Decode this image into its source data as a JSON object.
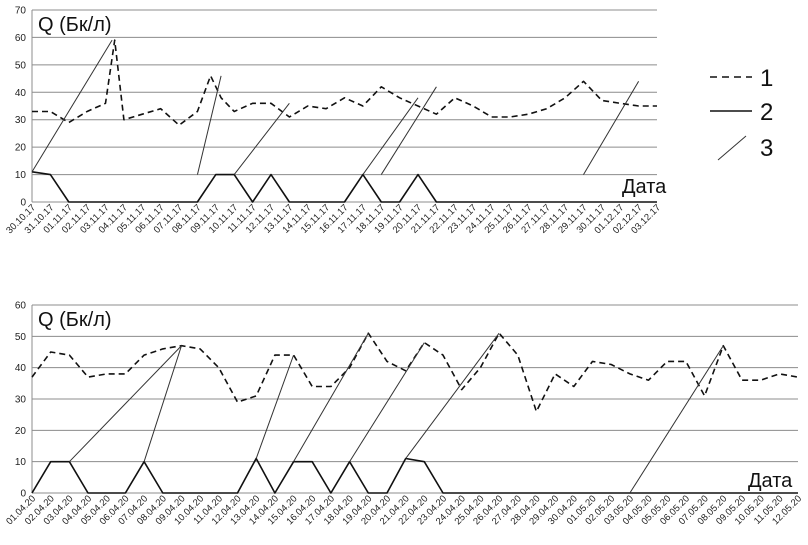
{
  "chart_data": [
    {
      "type": "line",
      "ylabel": "Q (Бк/л)",
      "xlabel": "Дата",
      "ylim": [
        0,
        70
      ],
      "yticks": [
        0,
        10,
        20,
        30,
        40,
        50,
        60,
        70
      ],
      "grid": true,
      "categories": [
        "30.10.17",
        "31.10.17",
        "01.11.17",
        "02.11.17",
        "03.11.17",
        "04.11.17",
        "05.11.17",
        "06.11.17",
        "07.11.17",
        "08.11.17",
        "09.11.17",
        "10.11.17",
        "11.11.17",
        "12.11.17",
        "13.11.17",
        "14.11.17",
        "15.11.17",
        "16.11.17",
        "17.11.17",
        "18.11.17",
        "19.11.17",
        "20.11.17",
        "21.11.17",
        "22.11.17",
        "23.11.17",
        "24.11.17",
        "25.11.17",
        "26.11.17",
        "27.11.17",
        "28.11.17",
        "29.11.17",
        "30.11.17",
        "01.12.17",
        "02.12.17",
        "03.12.17"
      ],
      "label_positions": [
        0,
        1.4,
        2.8,
        4.2,
        5.6,
        7,
        8.4,
        9.8,
        11.2,
        12.6,
        14,
        15.4,
        16.8,
        18.2,
        19.6,
        21,
        22.4,
        23.8,
        25.2,
        26.6,
        28,
        29.4,
        30.8,
        32.2,
        33.6,
        35,
        36.4,
        37.8,
        39.2,
        40.6,
        42,
        43.4,
        44.8,
        46.2,
        47.6
      ],
      "series": [
        {
          "name": "1",
          "style": "dashed",
          "color": "#111111",
          "x": [
            0,
            1.4,
            2.8,
            4.2,
            5.6,
            6.3,
            7,
            8.4,
            9.8,
            11.2,
            12.6,
            13.6,
            14.4,
            15.4,
            16.8,
            18.2,
            19.6,
            21,
            22.4,
            23.8,
            25.2,
            26.6,
            28,
            29.4,
            30.8,
            32.2,
            33.6,
            35,
            36.4,
            37.8,
            39.2,
            40.6,
            42,
            43.4,
            44.8,
            46.2,
            47.6
          ],
          "y": [
            33,
            33,
            29,
            33,
            36,
            59,
            30,
            32,
            34,
            28,
            33,
            46,
            38,
            33,
            36,
            36,
            31,
            35,
            34,
            38,
            35,
            42,
            38,
            35,
            32,
            38,
            35,
            31,
            31,
            32,
            34,
            38,
            44,
            37,
            36,
            35,
            35
          ]
        },
        {
          "name": "2",
          "style": "solid",
          "color": "#111111",
          "x": [
            0,
            1.4,
            2.8,
            4.2,
            5.6,
            7,
            8.4,
            9.8,
            11.2,
            12.6,
            14,
            15.4,
            16.8,
            18.2,
            19.6,
            21,
            22.4,
            23.8,
            25.2,
            26.6,
            28,
            29.4,
            30.8,
            32.2,
            33.6,
            35,
            36.4,
            37.8,
            39.2,
            40.6,
            42,
            43.4,
            44.8,
            46.2,
            47.6
          ],
          "y": [
            11,
            10,
            0,
            0,
            0,
            0,
            0,
            0,
            0,
            0,
            10,
            10,
            0,
            10,
            0,
            0,
            0,
            0,
            10,
            0,
            0,
            10,
            0,
            0,
            0,
            0,
            0,
            0,
            0,
            0,
            0,
            0,
            0,
            0,
            0
          ]
        },
        {
          "name": "3",
          "style": "thin",
          "color": "#333333",
          "segments": [
            [
              [
                0,
                11
              ],
              [
                6.1,
                59
              ]
            ],
            [
              [
                12.6,
                10
              ],
              [
                14.4,
                46
              ]
            ],
            [
              [
                15.4,
                10
              ],
              [
                19.6,
                36
              ]
            ],
            [
              [
                25.2,
                10
              ],
              [
                29.4,
                38
              ]
            ],
            [
              [
                26.6,
                10
              ],
              [
                30.8,
                42
              ]
            ],
            [
              [
                42,
                10
              ],
              [
                46.2,
                44
              ]
            ]
          ]
        }
      ]
    },
    {
      "type": "line",
      "ylabel": "Q (Бк/л)",
      "xlabel": "Дата",
      "ylim": [
        0,
        60
      ],
      "yticks": [
        0,
        10,
        20,
        30,
        40,
        50,
        60
      ],
      "grid": true,
      "categories": [
        "01.04.20",
        "02.04.20",
        "03.04.20",
        "04.04.20",
        "05.04.20",
        "06.04.20",
        "07.04.20",
        "08.04.20",
        "09.04.20",
        "10.04.20",
        "11.04.20",
        "12.04.20",
        "13.04.20",
        "14.04.20",
        "15.04.20",
        "16.04.20",
        "17.04.20",
        "18.04.20",
        "19.04.20",
        "20.04.20",
        "21.04.20",
        "22.04.20",
        "23.04.20",
        "24.04.20",
        "25.04.20",
        "26.04.20",
        "27.04.20",
        "28.04.20",
        "29.04.20",
        "30.04.20",
        "01.05.20",
        "02.05.20",
        "03.05.20",
        "04.05.20",
        "05.05.20",
        "06.05.20",
        "07.05.20",
        "08.05.20",
        "09.05.20",
        "10.05.20",
        "11.05.20",
        "12.05.20"
      ],
      "series": [
        {
          "name": "1",
          "style": "dashed",
          "color": "#111111",
          "x": [
            0,
            1,
            2,
            3,
            4,
            5,
            6,
            7,
            8,
            9,
            10,
            11,
            12,
            13,
            14,
            15,
            16,
            17,
            18,
            19,
            20,
            21,
            22,
            23,
            24,
            25,
            26,
            27,
            28,
            29,
            30,
            31,
            32,
            33,
            34,
            35,
            36,
            37,
            38,
            39,
            40,
            41
          ],
          "y": [
            37,
            45,
            44,
            37,
            38,
            38,
            44,
            46,
            47,
            46,
            40,
            29,
            31,
            44,
            44,
            34,
            34,
            40,
            51,
            42,
            39,
            48,
            44,
            33,
            40,
            51,
            44,
            26,
            38,
            34,
            42,
            41,
            38,
            36,
            42,
            42,
            31,
            47,
            36,
            36,
            38,
            37
          ]
        },
        {
          "name": "2",
          "style": "solid",
          "color": "#111111",
          "x": [
            0,
            1,
            2,
            3,
            4,
            5,
            6,
            7,
            8,
            9,
            10,
            11,
            12,
            13,
            14,
            15,
            16,
            17,
            18,
            19,
            20,
            21,
            22,
            23,
            24,
            25,
            26,
            27,
            28,
            29,
            30,
            31,
            32,
            33,
            34,
            35,
            36,
            37,
            38,
            39,
            40,
            41
          ],
          "y": [
            0,
            10,
            10,
            0,
            0,
            0,
            10,
            0,
            0,
            0,
            0,
            0,
            11,
            0,
            10,
            10,
            0,
            10,
            0,
            0,
            11,
            10,
            0,
            0,
            0,
            0,
            0,
            0,
            0,
            0,
            0,
            0,
            0,
            0,
            0,
            0,
            0,
            0,
            0,
            0,
            0,
            0
          ]
        },
        {
          "name": "3",
          "style": "thin",
          "color": "#333333",
          "segments": [
            [
              [
                2,
                10
              ],
              [
                8,
                47
              ]
            ],
            [
              [
                6,
                10
              ],
              [
                8,
                47
              ]
            ],
            [
              [
                12,
                11
              ],
              [
                14,
                44
              ]
            ],
            [
              [
                14,
                10
              ],
              [
                18,
                51
              ]
            ],
            [
              [
                17,
                10
              ],
              [
                21,
                48
              ]
            ],
            [
              [
                20,
                11
              ],
              [
                25,
                51
              ]
            ],
            [
              [
                32,
                0
              ],
              [
                37,
                47
              ]
            ]
          ]
        }
      ]
    }
  ],
  "legend": [
    {
      "label": "1",
      "style": "dashed"
    },
    {
      "label": "2",
      "style": "solid"
    },
    {
      "label": "3",
      "style": "thin-diagonal"
    }
  ]
}
